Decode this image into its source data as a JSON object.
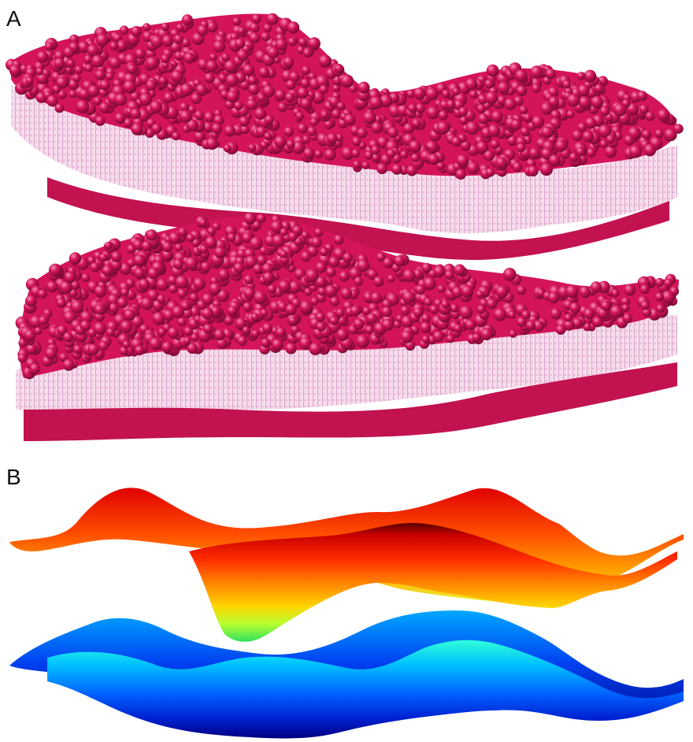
{
  "figure": {
    "panels": [
      {
        "label": "A"
      },
      {
        "label": "B"
      }
    ]
  },
  "colors": {
    "headgroup": "#d4145a",
    "headgroup_highlight": "#f2508a",
    "headgroup_shadow": "#8f0c3c",
    "tail": "#f2c6e4",
    "upper_surface_ramp": [
      "#5a0000",
      "#c80000",
      "#ff3000",
      "#ff8000",
      "#ffd000",
      "#b8ff30",
      "#30e060"
    ],
    "lower_surface_ramp": [
      "#30ffd8",
      "#00b8ff",
      "#0050ff",
      "#0010c0",
      "#000070"
    ]
  }
}
